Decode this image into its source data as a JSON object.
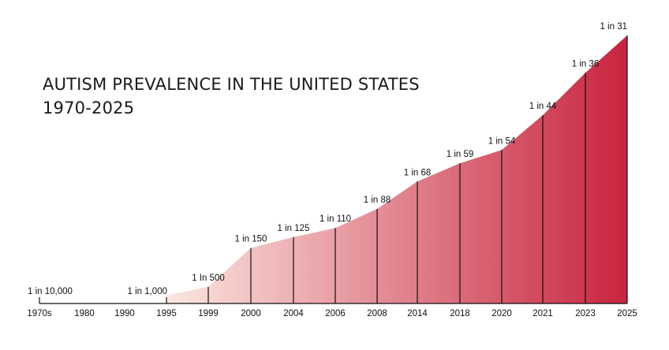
{
  "chart_data": {
    "type": "area",
    "title": "AUTISM PREVALENCE IN THE UNITED STATES",
    "subtitle": "1970-2025",
    "x": [
      "1970s",
      "1980",
      "1990",
      "1995",
      "1999",
      "2000",
      "2004",
      "2006",
      "2008",
      "2014",
      "2018",
      "2020",
      "2021",
      "2023",
      "2025"
    ],
    "labeled_points": [
      {
        "x": "1970s",
        "label": "1 in 10,000",
        "prevalence_per_1000": 0.1
      },
      {
        "x": "1995",
        "label": "1 in 1,000",
        "prevalence_per_1000": 1.0
      },
      {
        "x": "1999",
        "label": "1 In 500",
        "prevalence_per_1000": 2.0
      },
      {
        "x": "2000",
        "label": "1 in 150",
        "prevalence_per_1000": 6.7
      },
      {
        "x": "2004",
        "label": "1 in 125",
        "prevalence_per_1000": 8.0
      },
      {
        "x": "2006",
        "label": "1 in 110",
        "prevalence_per_1000": 9.1
      },
      {
        "x": "2008",
        "label": "1 in 88",
        "prevalence_per_1000": 11.4
      },
      {
        "x": "2014",
        "label": "1 in 68",
        "prevalence_per_1000": 14.7
      },
      {
        "x": "2018",
        "label": "1 in 59",
        "prevalence_per_1000": 16.9
      },
      {
        "x": "2020",
        "label": "1 in 54",
        "prevalence_per_1000": 18.5
      },
      {
        "x": "2021",
        "label": "1 in 44",
        "prevalence_per_1000": 22.7
      },
      {
        "x": "2023",
        "label": "1 in 36",
        "prevalence_per_1000": 27.8
      },
      {
        "x": "2025",
        "label": "1 in 31",
        "prevalence_per_1000": 32.3
      }
    ],
    "area_gradient": [
      "#fbe7e1",
      "#c8243f"
    ],
    "grid": false,
    "legend": "none"
  }
}
